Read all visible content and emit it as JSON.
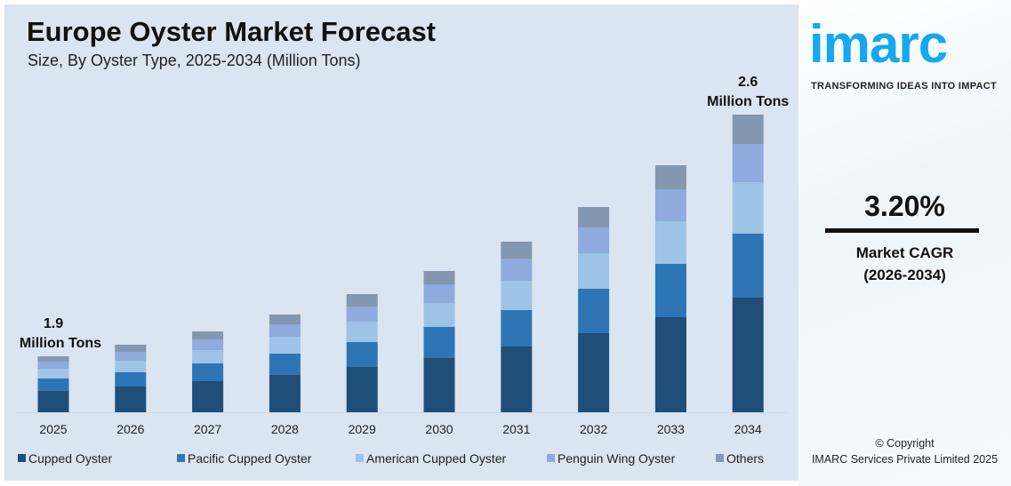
{
  "header": {
    "title": "Europe Oyster Market Forecast",
    "subtitle": "Size, By Oyster Type, 2025-2034 (Million Tons)"
  },
  "chart_data": {
    "type": "bar",
    "stacked": true,
    "title": "Europe Oyster Market Forecast",
    "subtitle": "Size, By Oyster Type, 2025-2034 (Million Tons)",
    "xlabel": "",
    "ylabel": "",
    "grid": false,
    "legend_position": "bottom",
    "categories": [
      "2025",
      "2026",
      "2027",
      "2028",
      "2029",
      "2030",
      "2031",
      "2032",
      "2033",
      "2034"
    ],
    "series": [
      {
        "name": "Cupped Oyster",
        "color": "#1f4e79",
        "values": [
          24,
          29,
          35,
          42,
          51,
          61,
          74,
          89,
          107,
          129
        ]
      },
      {
        "name": "Pacific Cupped Oyster",
        "color": "#2e75b6",
        "values": [
          14,
          16,
          20,
          24,
          28,
          35,
          41,
          50,
          60,
          72
        ]
      },
      {
        "name": "American Cupped Oyster",
        "color": "#9dc3e6",
        "values": [
          11,
          13,
          15,
          19,
          23,
          27,
          33,
          40,
          48,
          58
        ]
      },
      {
        "name": "Penguin Wing Oyster",
        "color": "#8faadc",
        "values": [
          8,
          10,
          12,
          14,
          17,
          21,
          25,
          29,
          36,
          43
        ]
      },
      {
        "name": "Others",
        "color": "#8497b0",
        "values": [
          6,
          8,
          9,
          11,
          14,
          15,
          19,
          23,
          27,
          33
        ]
      }
    ],
    "annotations": [
      {
        "category": "2025",
        "value_label": "1.9",
        "unit_label": "Million Tons"
      },
      {
        "category": "2034",
        "value_label": "2.6",
        "unit_label": "Million Tons"
      }
    ]
  },
  "sidebar": {
    "logo": "imarc",
    "tagline": "TRANSFORMING IDEAS INTO IMPACT",
    "cagr_value": "3.20%",
    "cagr_label": "Market CAGR",
    "cagr_period": "(2026-2034)",
    "copyright": "© Copyright",
    "company": "IMARC Services Private Limited 2025"
  }
}
